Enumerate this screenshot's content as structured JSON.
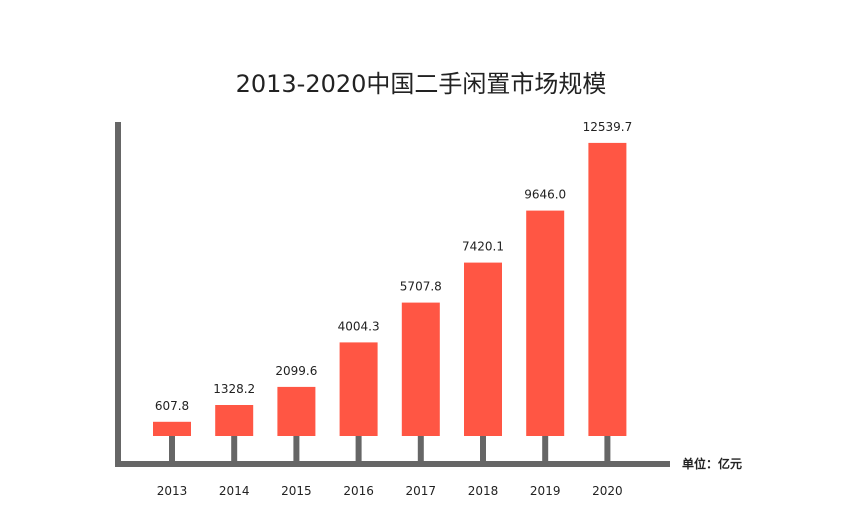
{
  "chart_data": {
    "type": "bar",
    "title": "2013-2020中国二手闲置市场规模",
    "unit_label": "单位：亿元",
    "categories": [
      "2013",
      "2014",
      "2015",
      "2016",
      "2017",
      "2018",
      "2019",
      "2020"
    ],
    "values": [
      607.8,
      1328.2,
      2099.6,
      4004.3,
      5707.8,
      7420.1,
      9646.0,
      12539.7
    ],
    "value_labels": [
      "607.8",
      "1328.2",
      "2099.6",
      "4004.3",
      "5707.8",
      "7420.1",
      "9646.0",
      "12539.7"
    ],
    "bar_color": "#FF5644",
    "axis_color": "#666666",
    "grid": false,
    "legend": "none"
  }
}
